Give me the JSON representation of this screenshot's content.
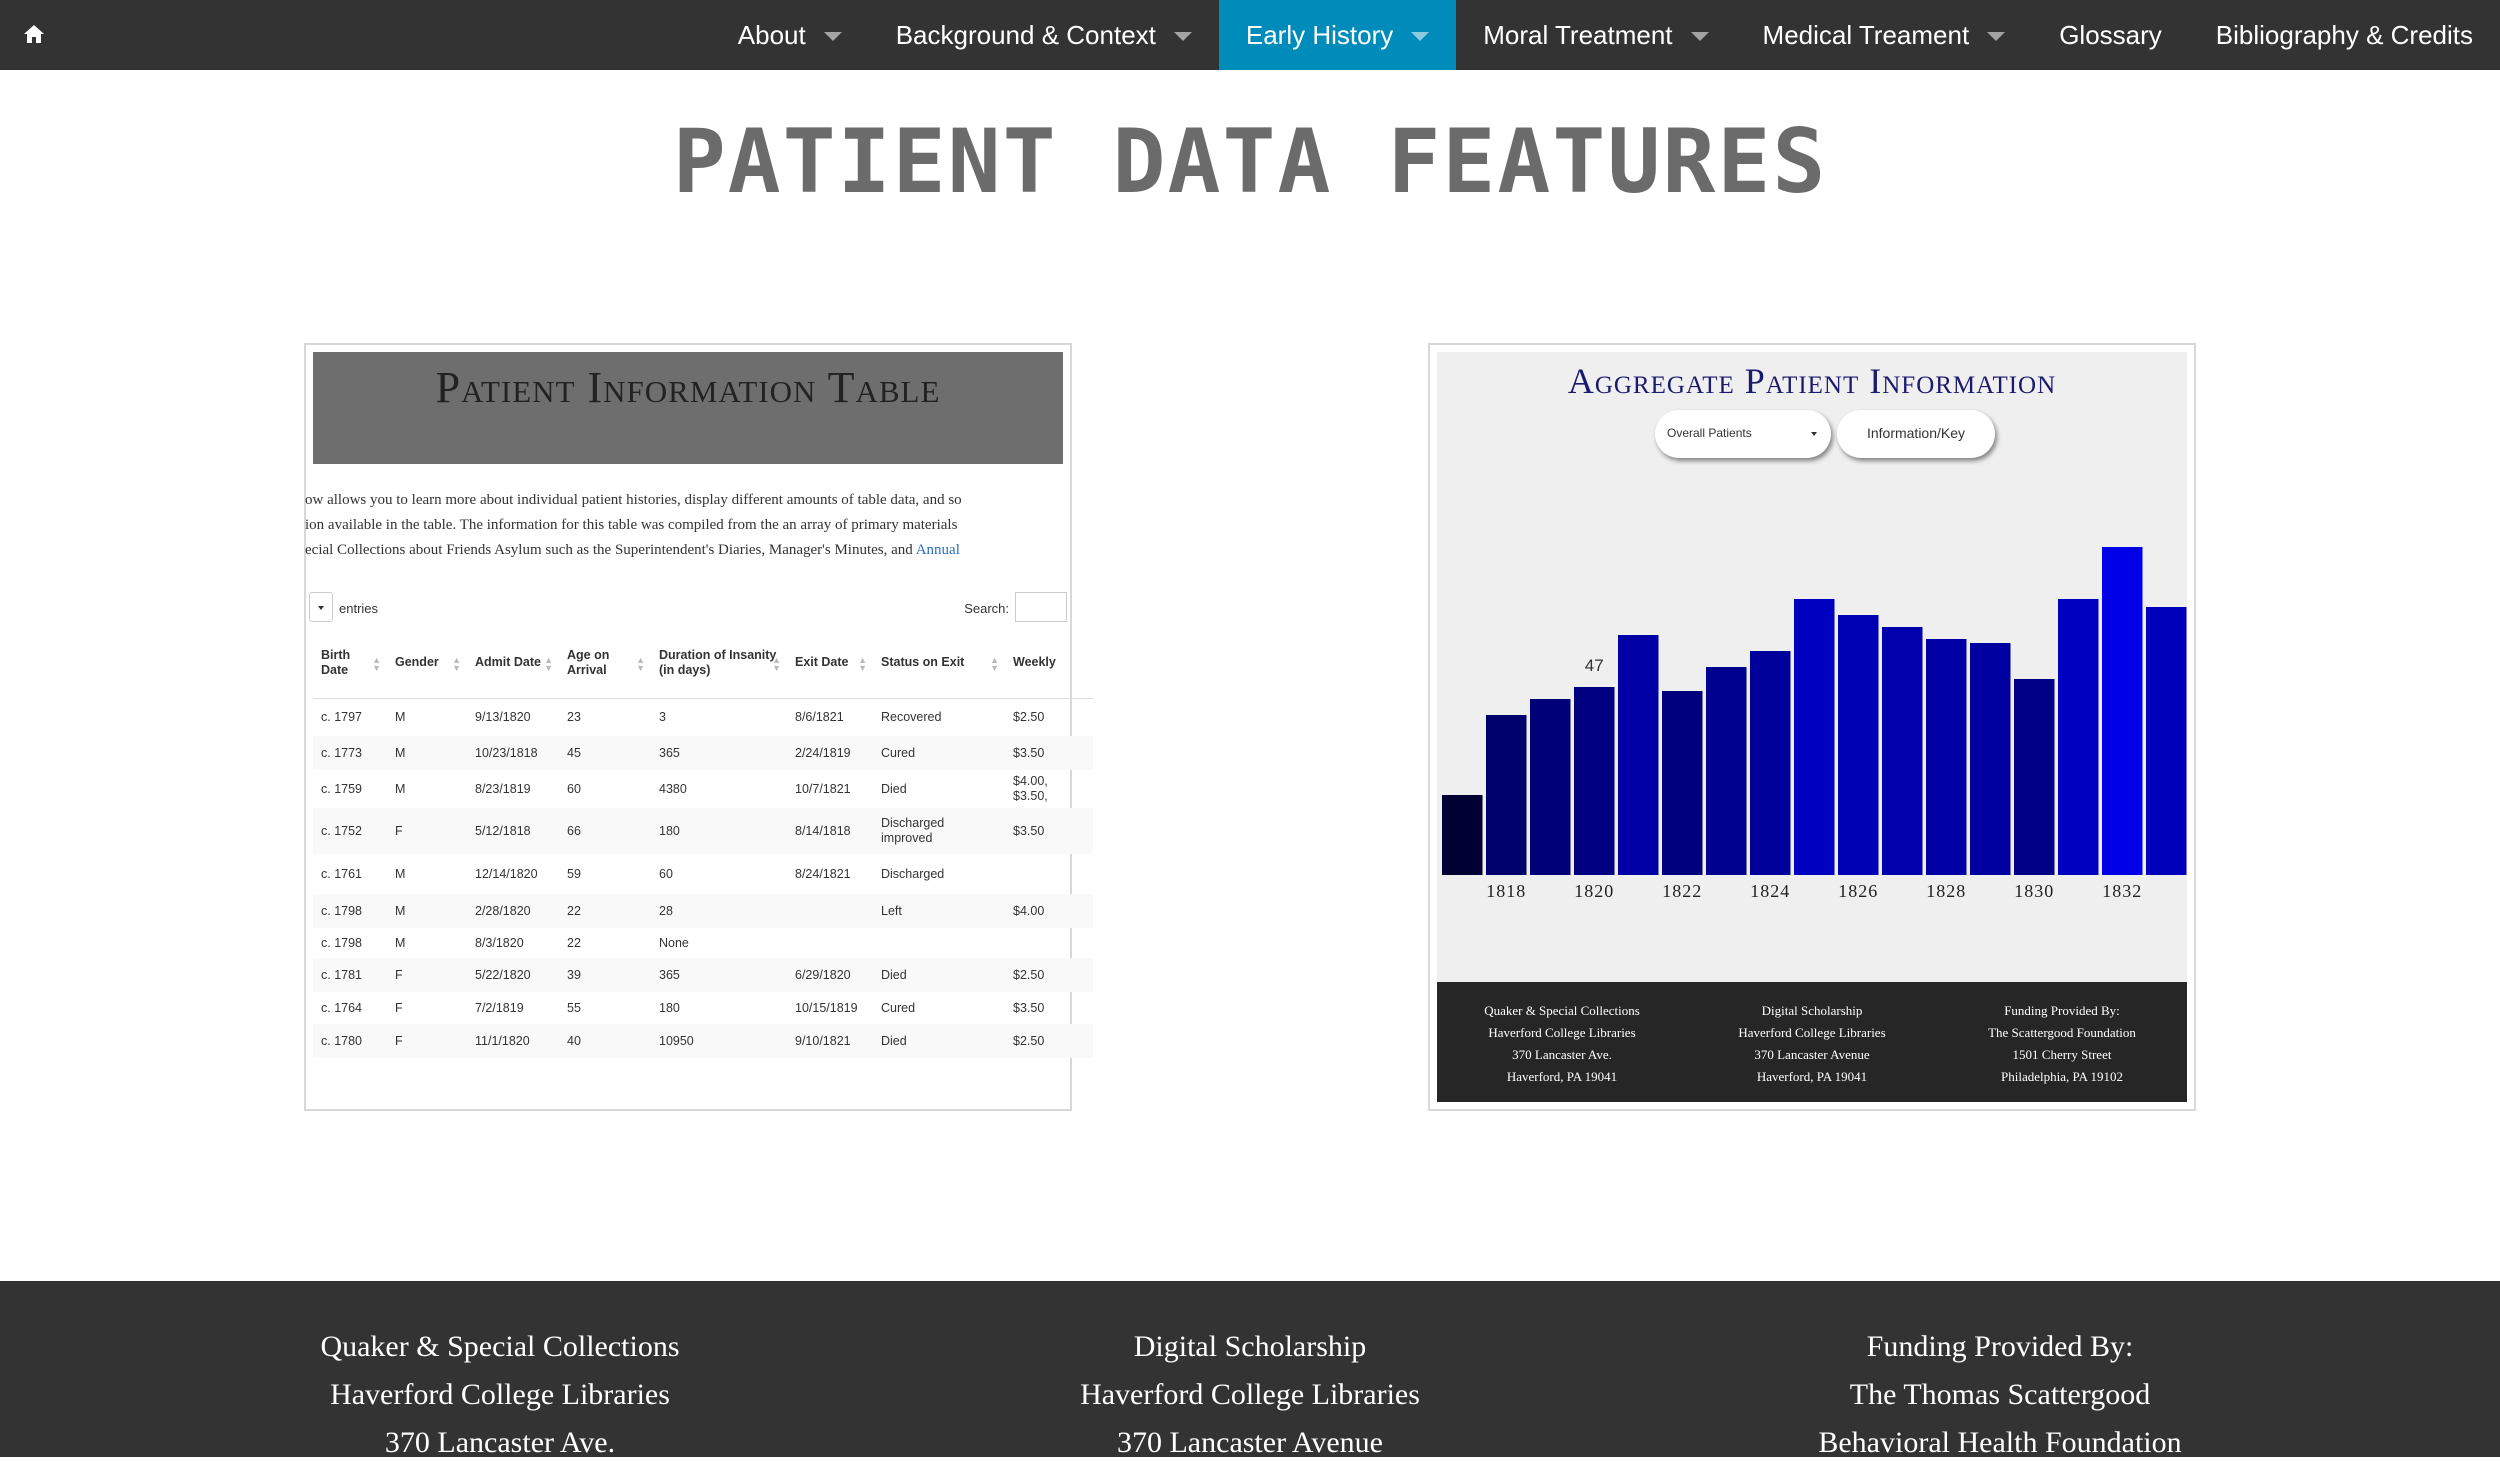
{
  "nav": {
    "home_icon": "home-icon",
    "items": [
      {
        "label": "About",
        "dropdown": true
      },
      {
        "label": "Background & Context",
        "dropdown": true
      },
      {
        "label": "Early History",
        "dropdown": true,
        "active": true
      },
      {
        "label": "Moral Treatment",
        "dropdown": true
      },
      {
        "label": "Medical Treament",
        "dropdown": true
      },
      {
        "label": "Glossary",
        "dropdown": false
      },
      {
        "label": "Bibliography & Credits",
        "dropdown": false
      }
    ],
    "active_color": "#008cba",
    "bg_color": "#333333"
  },
  "page": {
    "title": "PATIENT DATA FEATURES"
  },
  "patient_table_thumb": {
    "title": "Patient Information Table",
    "intro_lines": [
      "ow allows you to learn more about individual patient histories, display different amounts of table data, and so",
      "ion available in the table. The information for this table was compiled from the an array of primary materials",
      "ecial Collections about Friends Asylum such as the Superintendent's Diaries, Manager's Minutes, and "
    ],
    "intro_link": "Annual",
    "entries_label": "entries",
    "search_label": "Search:",
    "columns": [
      "Birth Date",
      "Gender",
      "Admit Date",
      "Age on Arrival",
      "Duration of Insanity (in days)",
      "Exit Date",
      "Status on Exit",
      "Weekly"
    ],
    "rows": [
      [
        "c. 1797",
        "M",
        "9/13/1820",
        "23",
        "3",
        "8/6/1821",
        "Recovered",
        "$2.50"
      ],
      [
        "c. 1773",
        "M",
        "10/23/1818",
        "45",
        "365",
        "2/24/1819",
        "Cured",
        "$3.50"
      ],
      [
        "c. 1759",
        "M",
        "8/23/1819",
        "60",
        "4380",
        "10/7/1821",
        "Died",
        "$4.00, $3.50,"
      ],
      [
        "c. 1752",
        "F",
        "5/12/1818",
        "66",
        "180",
        "8/14/1818",
        "Discharged improved",
        "$3.50"
      ],
      [
        "c. 1761",
        "M",
        "12/14/1820",
        "59",
        "60",
        "8/24/1821",
        "Discharged",
        ""
      ],
      [
        "c. 1798",
        "M",
        "2/28/1820",
        "22",
        "28",
        "",
        "Left",
        "$4.00"
      ],
      [
        "c. 1798",
        "M",
        "8/3/1820",
        "22",
        "None",
        "",
        "",
        ""
      ],
      [
        "c. 1781",
        "F",
        "5/22/1820",
        "39",
        "365",
        "6/29/1820",
        "Died",
        "$2.50"
      ],
      [
        "c. 1764",
        "F",
        "7/2/1819",
        "55",
        "180",
        "10/15/1819",
        "Cured",
        "$3.50"
      ],
      [
        "c. 1780",
        "F",
        "11/1/1820",
        "40",
        "10950",
        "9/10/1821",
        "Died",
        "$2.50"
      ]
    ]
  },
  "aggregate_thumb": {
    "title": "Aggregate Patient Information",
    "select_value": "Overall Patients",
    "info_button": "Information/Key",
    "footer_cols": [
      [
        "Quaker & Special Collections",
        "Haverford College Libraries",
        "370 Lancaster Ave.",
        "Haverford, PA 19041"
      ],
      [
        "Digital Scholarship",
        "Haverford College Libraries",
        "370 Lancaster Avenue",
        "Haverford, PA 19041"
      ],
      [
        "Funding Provided By:",
        "The Scattergood Foundation",
        "1501 Cherry Street",
        "Philadelphia, PA 19102"
      ]
    ]
  },
  "chart_data": {
    "type": "bar",
    "title": "Aggregate Patient Information",
    "categories": [
      "1817",
      "1818",
      "1819",
      "1820",
      "1821",
      "1822",
      "1823",
      "1824",
      "1825",
      "1826",
      "1827",
      "1828",
      "1829",
      "1830",
      "1831",
      "1832",
      "1833"
    ],
    "values": [
      20,
      40,
      44,
      47,
      60,
      46,
      52,
      56,
      69,
      65,
      62,
      59,
      58,
      49,
      69,
      82,
      67
    ],
    "tick_labels": [
      "1818",
      "1820",
      "1822",
      "1824",
      "1826",
      "1828",
      "1830",
      "1832"
    ],
    "tooltip": {
      "category": "1820",
      "value": "47"
    },
    "ylim": [
      0,
      85
    ],
    "color_dark": "#000033",
    "color_light": "#0000e6",
    "grid": false,
    "legend": "none"
  },
  "site_footer": {
    "cols": [
      [
        "Quaker & Special Collections",
        "Haverford College Libraries",
        "370 Lancaster Ave."
      ],
      [
        "Digital Scholarship",
        "Haverford College Libraries",
        "370 Lancaster Avenue"
      ],
      [
        "Funding Provided By:",
        "The Thomas Scattergood",
        "Behavioral Health Foundation"
      ]
    ]
  }
}
